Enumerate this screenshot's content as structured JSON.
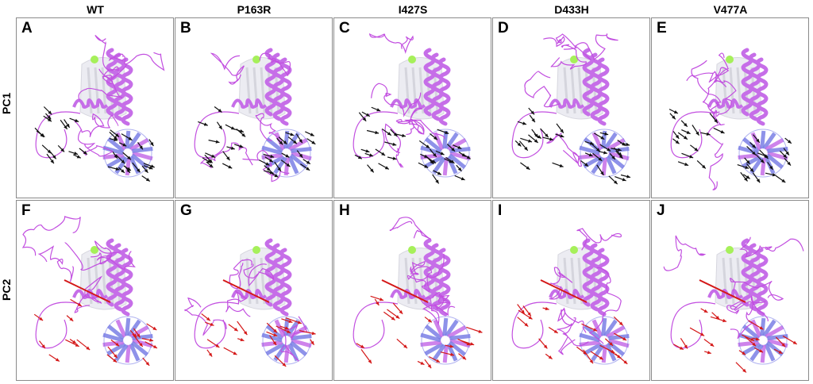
{
  "columns": [
    "WT",
    "P163R",
    "I427S",
    "D433H",
    "V477A"
  ],
  "rows": [
    "PC1",
    "PC2"
  ],
  "panels": [
    {
      "label": "A",
      "row": 0,
      "col": 0
    },
    {
      "label": "B",
      "row": 0,
      "col": 1
    },
    {
      "label": "C",
      "row": 0,
      "col": 2
    },
    {
      "label": "D",
      "row": 0,
      "col": 3
    },
    {
      "label": "E",
      "row": 0,
      "col": 4
    },
    {
      "label": "F",
      "row": 1,
      "col": 0
    },
    {
      "label": "G",
      "row": 1,
      "col": 1
    },
    {
      "label": "H",
      "row": 1,
      "col": 2
    },
    {
      "label": "I",
      "row": 1,
      "col": 3
    },
    {
      "label": "J",
      "row": 1,
      "col": 4
    }
  ],
  "colors": {
    "helix": "#c66ee8",
    "sheet": "#7b7fe6",
    "coil": "#c24fe0",
    "ghost": "#c9c9d4",
    "ligand": "#a6f05a",
    "pc1_arrow": "#111111",
    "pc2_arrow": "#d41818"
  }
}
